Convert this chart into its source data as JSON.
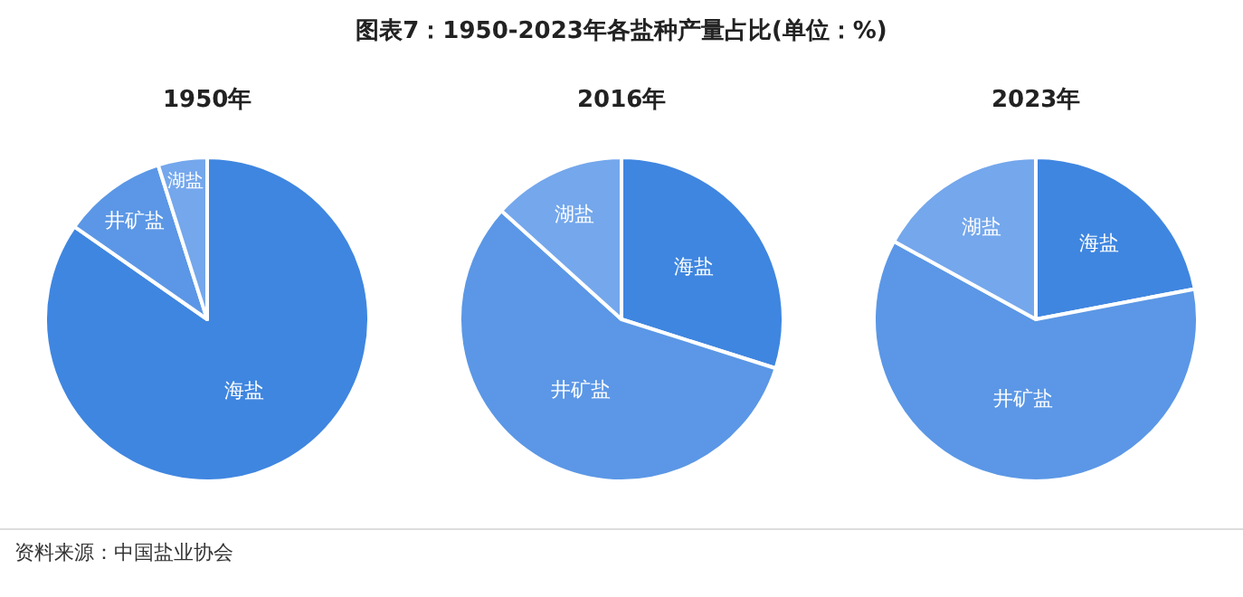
{
  "chart_data": [
    {
      "type": "pie",
      "title": "1950年",
      "categories": [
        "海盐",
        "井矿盐",
        "湖盐"
      ],
      "values": [
        84.7,
        10.4,
        4.9
      ],
      "colors": [
        "#3f86e0",
        "#5b97e6",
        "#74a7ec"
      ],
      "annotations": [
        "图表7：1950-2023年各盐种产量占比(单位：%)",
        "资料来源：中国盐业协会"
      ]
    },
    {
      "type": "pie",
      "title": "2016年",
      "categories": [
        "海盐",
        "井矿盐",
        "湖盐"
      ],
      "values": [
        29.9,
        56.8,
        13.3
      ],
      "colors": [
        "#3f86e0",
        "#5b97e6",
        "#74a7ec"
      ]
    },
    {
      "type": "pie",
      "title": "2023年",
      "categories": [
        "海盐",
        "井矿盐",
        "湖盐"
      ],
      "values": [
        22.0,
        61.0,
        17.0
      ],
      "colors": [
        "#3f86e0",
        "#5b97e6",
        "#74a7ec"
      ]
    }
  ]
}
